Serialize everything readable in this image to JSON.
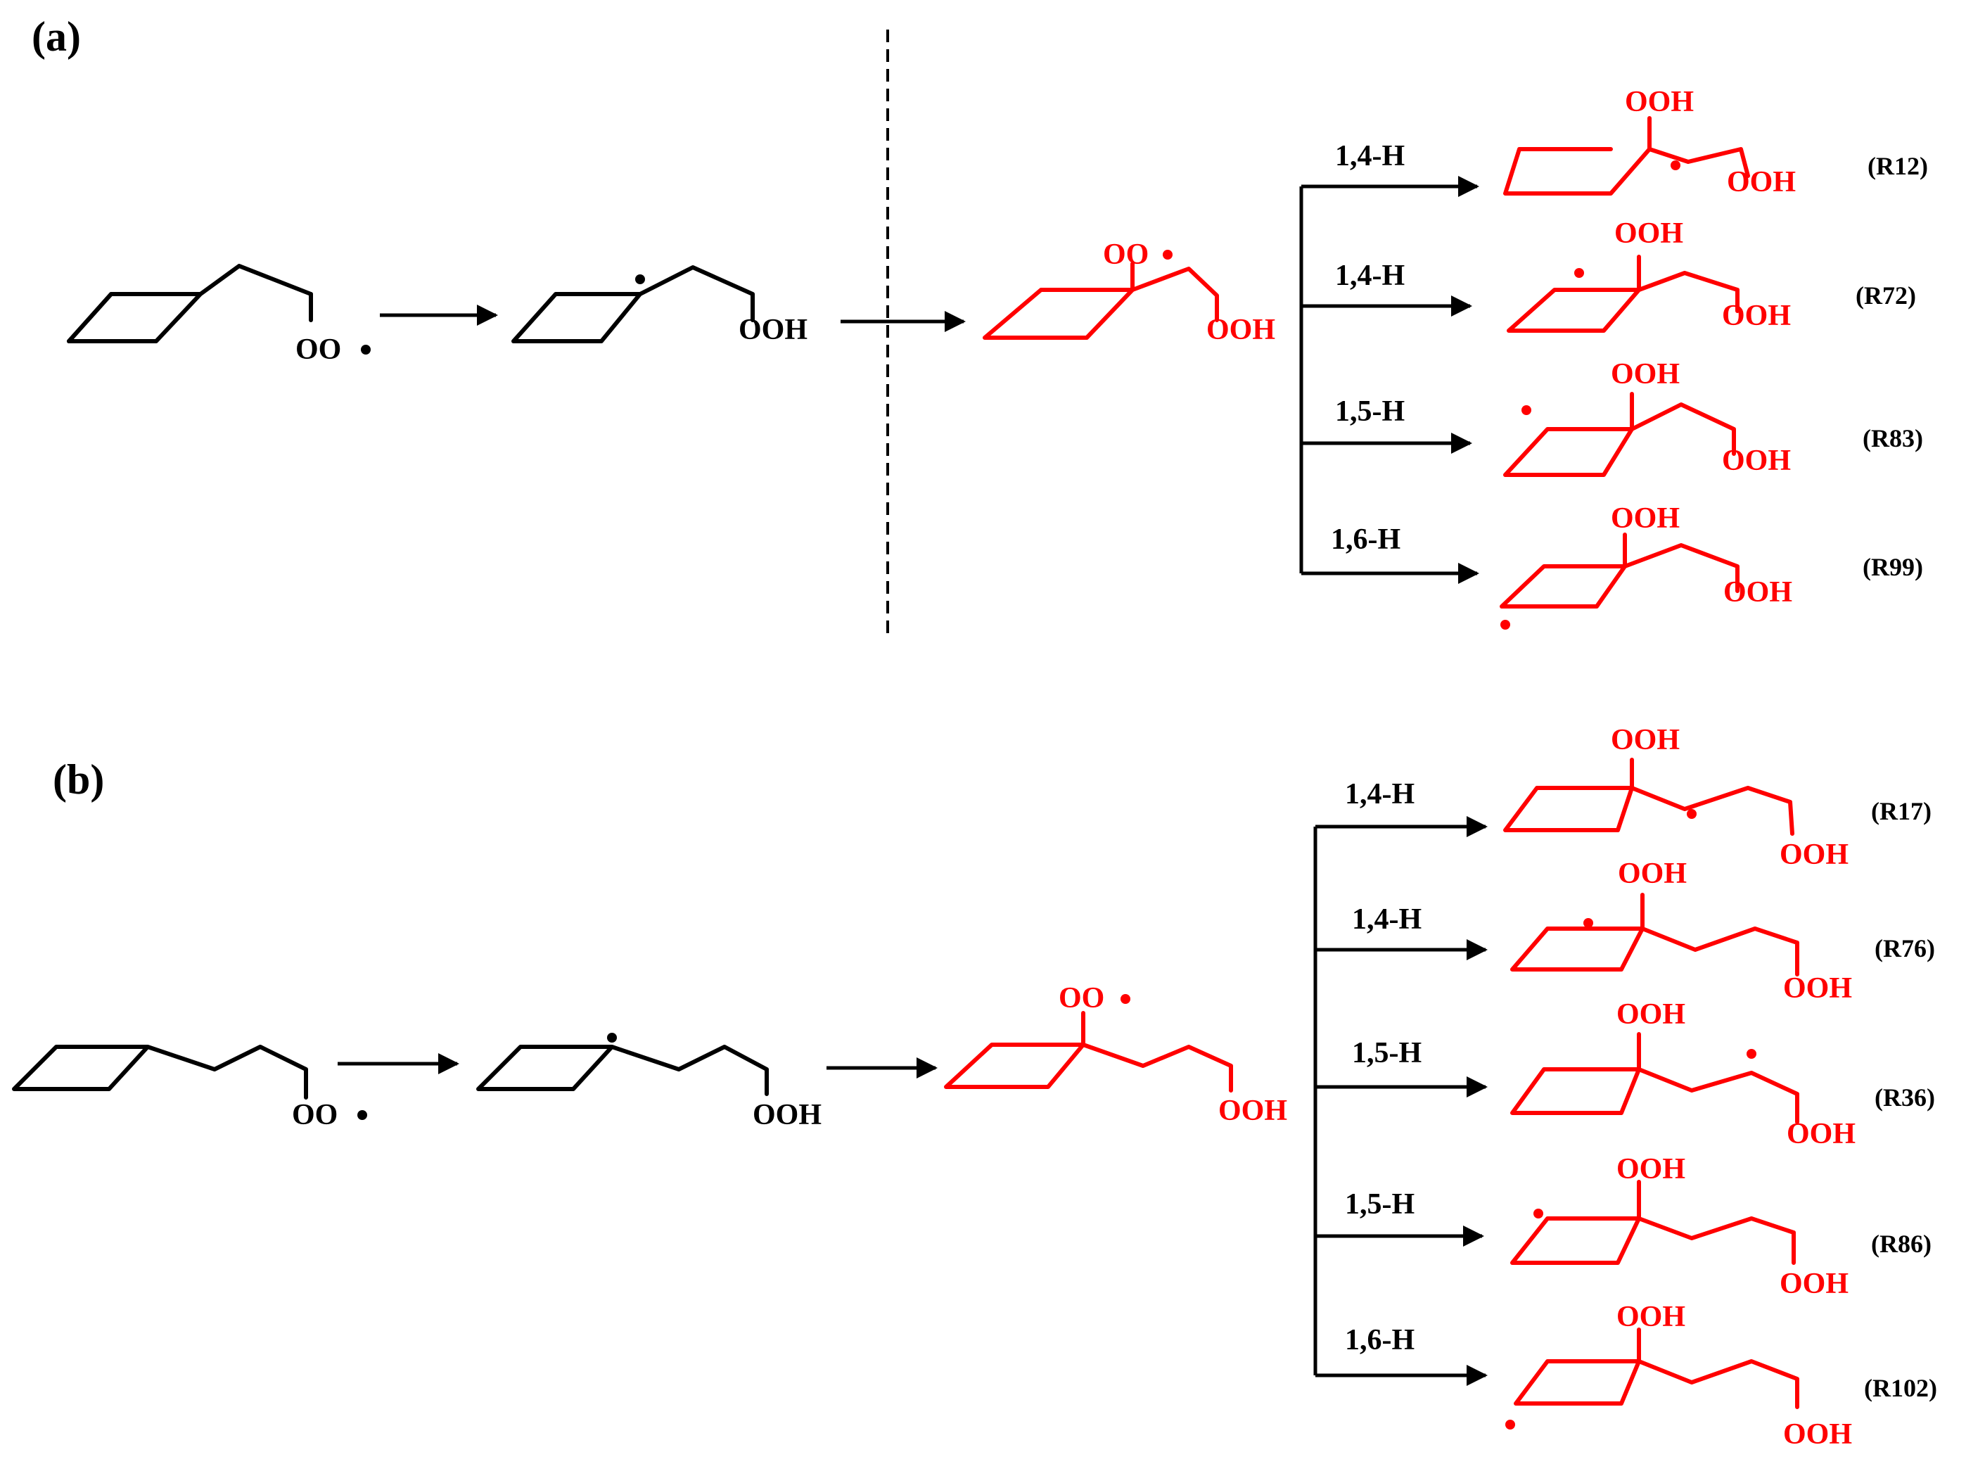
{
  "colors": {
    "reactant": "#000000",
    "product": "#ff0000"
  },
  "panel_a": {
    "label": "(a)",
    "reactant_1": {
      "group": "OO",
      "radical": true
    },
    "reactant_2": {
      "group": "OOH"
    },
    "intermediate": {
      "peroxy": "OO",
      "hydroperoxy": "OOH"
    },
    "branches": [
      {
        "shift": "1,4-H",
        "top_group": "OOH",
        "end_group": "OOH",
        "reaction": "(R12)"
      },
      {
        "shift": "1,4-H",
        "top_group": "OOH",
        "end_group": "OOH",
        "reaction": "(R72)"
      },
      {
        "shift": "1,5-H",
        "top_group": "OOH",
        "end_group": "OOH",
        "reaction": "(R83)"
      },
      {
        "shift": "1,6-H",
        "top_group": "OOH",
        "end_group": "OOH",
        "reaction": "(R99)"
      }
    ]
  },
  "panel_b": {
    "label": "(b)",
    "reactant_1": {
      "group": "OO",
      "radical": true
    },
    "reactant_2": {
      "group": "OOH"
    },
    "intermediate": {
      "peroxy": "OO",
      "hydroperoxy": "OOH"
    },
    "branches": [
      {
        "shift": "1,4-H",
        "top_group": "OOH",
        "end_group": "OOH",
        "reaction": "(R17)"
      },
      {
        "shift": "1,4-H",
        "top_group": "OOH",
        "end_group": "OOH",
        "reaction": "(R76)"
      },
      {
        "shift": "1,5-H",
        "top_group": "OOH",
        "end_group": "OOH",
        "reaction": "(R36)"
      },
      {
        "shift": "1,5-H",
        "top_group": "OOH",
        "end_group": "OOH",
        "reaction": "(R86)"
      },
      {
        "shift": "1,6-H",
        "top_group": "OOH",
        "end_group": "OOH",
        "reaction": "(R102)"
      }
    ]
  }
}
